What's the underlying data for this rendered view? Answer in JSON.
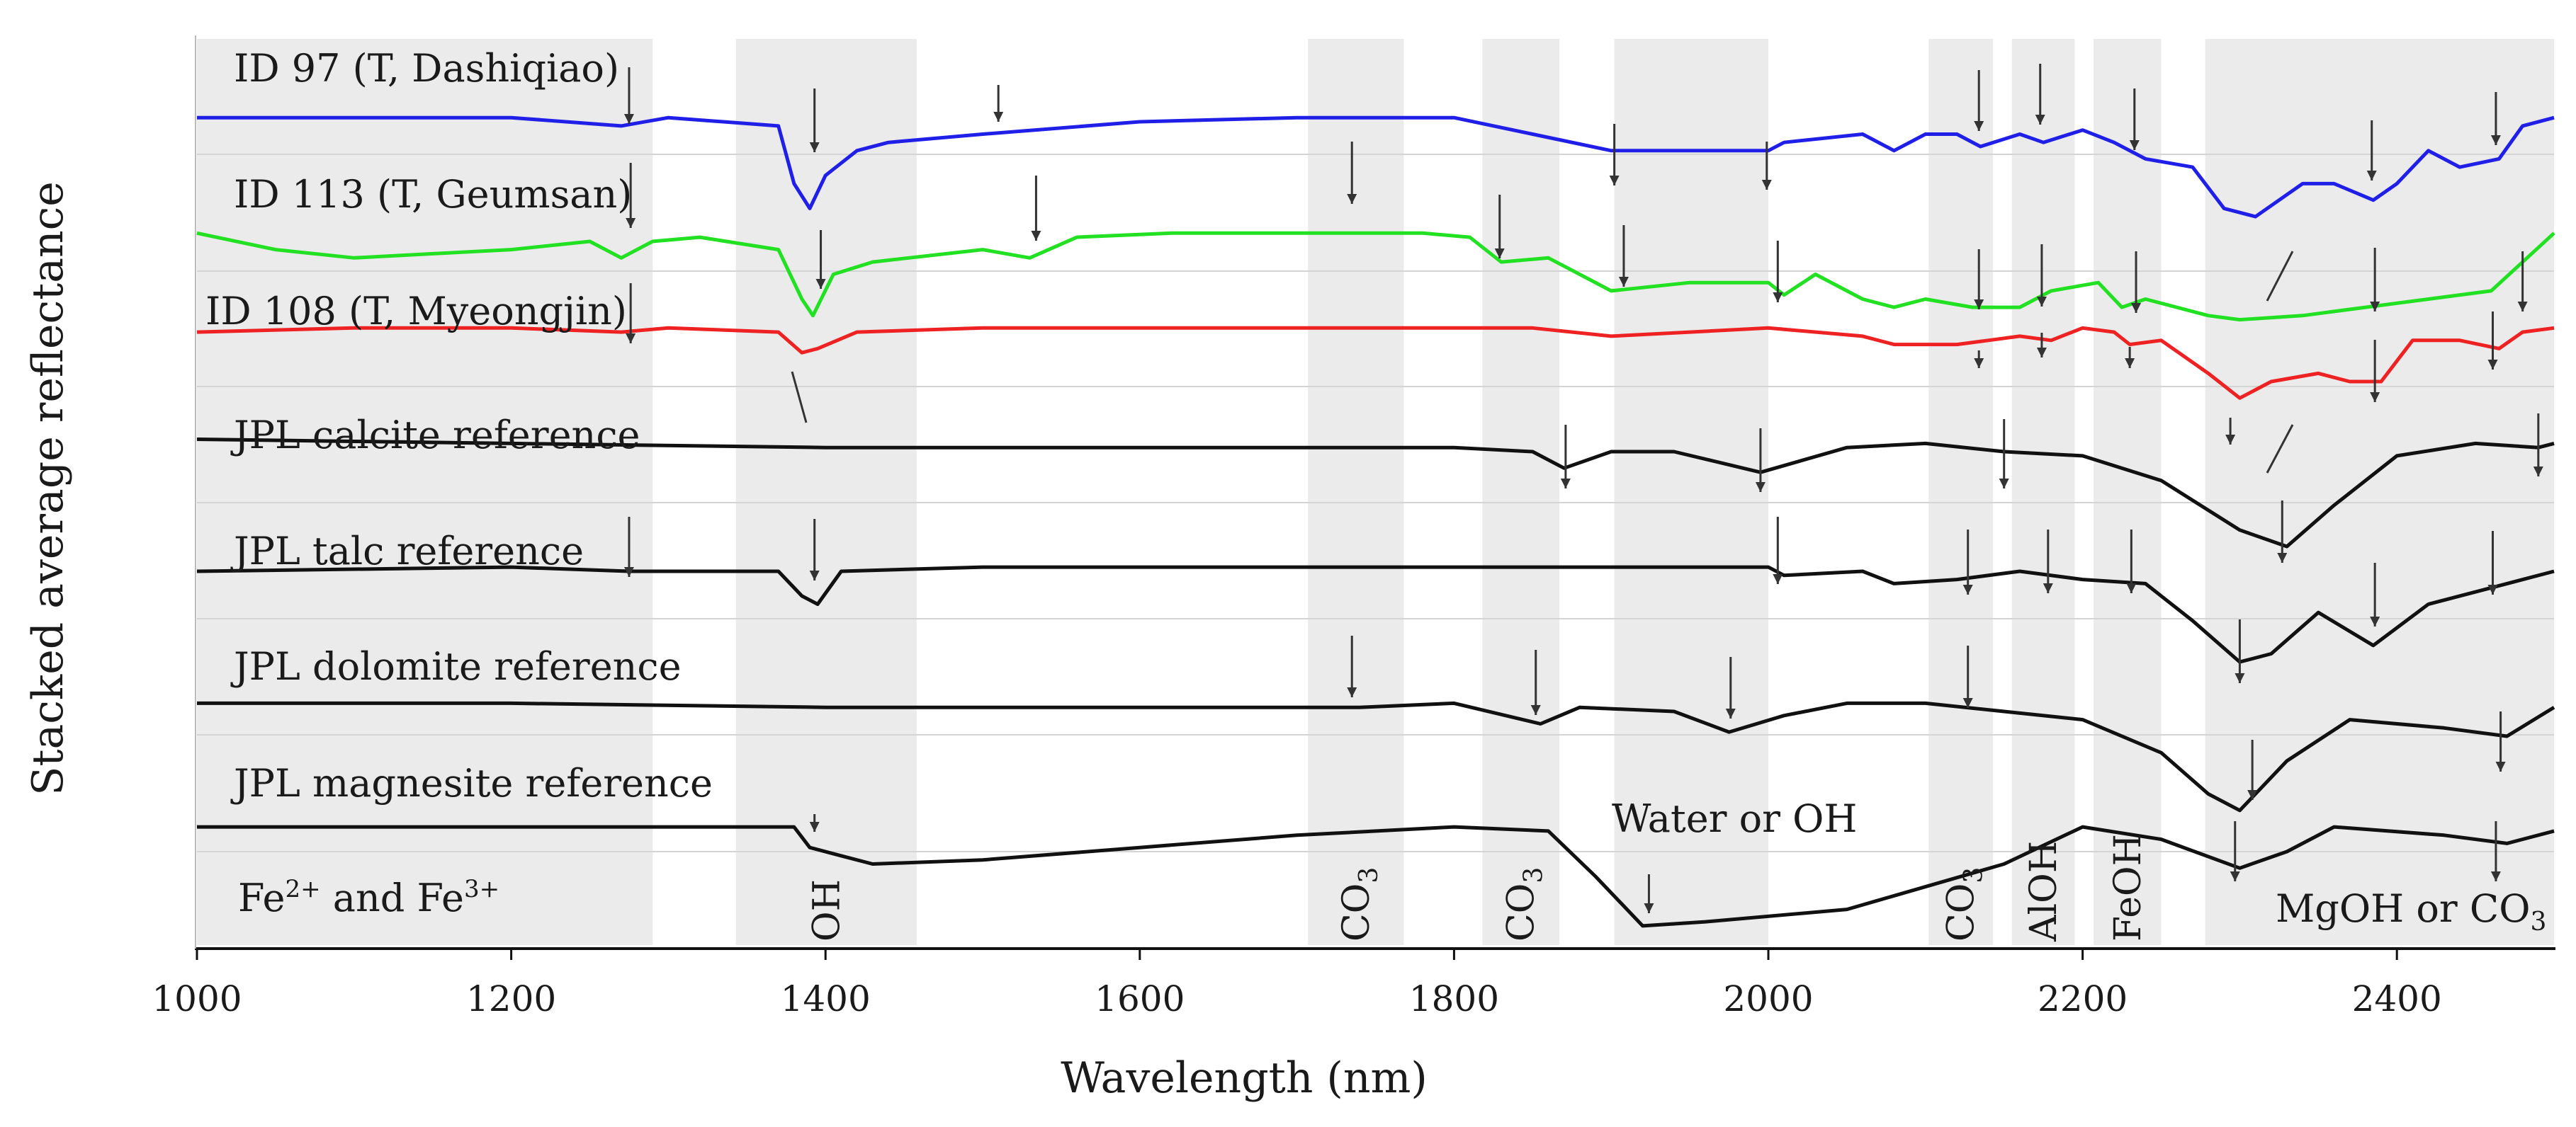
{
  "chart_data": {
    "type": "line",
    "xlabel": "Wavelength (nm)",
    "ylabel": "Stacked average reflectance",
    "xlim": [
      1000,
      2500
    ],
    "xticks": [
      1000,
      1200,
      1400,
      1600,
      1800,
      2000,
      2200,
      2400
    ],
    "grid": "horizontal",
    "series": [
      {
        "name": "ID 97 (T, Dashiqiao)",
        "color": "#1f1fe8",
        "points": [
          [
            1000,
            0.72
          ],
          [
            1100,
            0.72
          ],
          [
            1200,
            0.72
          ],
          [
            1270,
            0.71
          ],
          [
            1300,
            0.72
          ],
          [
            1370,
            0.71
          ],
          [
            1380,
            0.64
          ],
          [
            1390,
            0.61
          ],
          [
            1400,
            0.65
          ],
          [
            1420,
            0.68
          ],
          [
            1440,
            0.69
          ],
          [
            1500,
            0.7
          ],
          [
            1600,
            0.715
          ],
          [
            1700,
            0.72
          ],
          [
            1800,
            0.72
          ],
          [
            1850,
            0.7
          ],
          [
            1900,
            0.68
          ],
          [
            1950,
            0.68
          ],
          [
            2000,
            0.68
          ],
          [
            2010,
            0.69
          ],
          [
            2060,
            0.7
          ],
          [
            2080,
            0.68
          ],
          [
            2100,
            0.7
          ],
          [
            2120,
            0.7
          ],
          [
            2135,
            0.685
          ],
          [
            2160,
            0.7
          ],
          [
            2175,
            0.69
          ],
          [
            2200,
            0.705
          ],
          [
            2220,
            0.69
          ],
          [
            2240,
            0.67
          ],
          [
            2270,
            0.66
          ],
          [
            2290,
            0.61
          ],
          [
            2310,
            0.6
          ],
          [
            2340,
            0.64
          ],
          [
            2360,
            0.64
          ],
          [
            2385,
            0.62
          ],
          [
            2400,
            0.64
          ],
          [
            2420,
            0.68
          ],
          [
            2440,
            0.66
          ],
          [
            2465,
            0.67
          ],
          [
            2480,
            0.71
          ],
          [
            2500,
            0.72
          ]
        ]
      },
      {
        "name": "ID 113 (T, Geumsan)",
        "color": "#22e022",
        "points": [
          [
            1000,
            0.58
          ],
          [
            1050,
            0.56
          ],
          [
            1100,
            0.55
          ],
          [
            1150,
            0.555
          ],
          [
            1200,
            0.56
          ],
          [
            1250,
            0.57
          ],
          [
            1270,
            0.55
          ],
          [
            1290,
            0.57
          ],
          [
            1320,
            0.575
          ],
          [
            1370,
            0.56
          ],
          [
            1385,
            0.5
          ],
          [
            1392,
            0.48
          ],
          [
            1405,
            0.53
          ],
          [
            1430,
            0.545
          ],
          [
            1500,
            0.56
          ],
          [
            1530,
            0.55
          ],
          [
            1560,
            0.575
          ],
          [
            1620,
            0.58
          ],
          [
            1700,
            0.58
          ],
          [
            1780,
            0.58
          ],
          [
            1810,
            0.575
          ],
          [
            1830,
            0.545
          ],
          [
            1860,
            0.55
          ],
          [
            1900,
            0.51
          ],
          [
            1950,
            0.52
          ],
          [
            2000,
            0.52
          ],
          [
            2010,
            0.505
          ],
          [
            2030,
            0.53
          ],
          [
            2060,
            0.5
          ],
          [
            2080,
            0.49
          ],
          [
            2100,
            0.5
          ],
          [
            2130,
            0.49
          ],
          [
            2160,
            0.49
          ],
          [
            2180,
            0.51
          ],
          [
            2210,
            0.52
          ],
          [
            2225,
            0.49
          ],
          [
            2240,
            0.5
          ],
          [
            2280,
            0.48
          ],
          [
            2300,
            0.475
          ],
          [
            2340,
            0.48
          ],
          [
            2380,
            0.49
          ],
          [
            2420,
            0.5
          ],
          [
            2460,
            0.51
          ],
          [
            2500,
            0.58
          ]
        ]
      },
      {
        "name": "ID 108 (T, Myeongjin)",
        "color": "#ee2222",
        "points": [
          [
            1000,
            0.46
          ],
          [
            1100,
            0.465
          ],
          [
            1200,
            0.465
          ],
          [
            1270,
            0.46
          ],
          [
            1300,
            0.465
          ],
          [
            1370,
            0.46
          ],
          [
            1385,
            0.435
          ],
          [
            1395,
            0.44
          ],
          [
            1420,
            0.46
          ],
          [
            1500,
            0.465
          ],
          [
            1600,
            0.465
          ],
          [
            1700,
            0.465
          ],
          [
            1800,
            0.465
          ],
          [
            1850,
            0.465
          ],
          [
            1900,
            0.455
          ],
          [
            2000,
            0.465
          ],
          [
            2060,
            0.455
          ],
          [
            2080,
            0.445
          ],
          [
            2120,
            0.445
          ],
          [
            2140,
            0.45
          ],
          [
            2160,
            0.455
          ],
          [
            2180,
            0.45
          ],
          [
            2200,
            0.465
          ],
          [
            2220,
            0.46
          ],
          [
            2230,
            0.445
          ],
          [
            2250,
            0.45
          ],
          [
            2280,
            0.41
          ],
          [
            2300,
            0.38
          ],
          [
            2320,
            0.4
          ],
          [
            2350,
            0.41
          ],
          [
            2370,
            0.4
          ],
          [
            2390,
            0.4
          ],
          [
            2410,
            0.45
          ],
          [
            2440,
            0.45
          ],
          [
            2465,
            0.44
          ],
          [
            2480,
            0.46
          ],
          [
            2500,
            0.465
          ]
        ]
      },
      {
        "name": "JPL calcite reference",
        "color": "#111111",
        "points": [
          [
            1000,
            0.33
          ],
          [
            1200,
            0.325
          ],
          [
            1400,
            0.32
          ],
          [
            1600,
            0.32
          ],
          [
            1800,
            0.32
          ],
          [
            1850,
            0.315
          ],
          [
            1870,
            0.295
          ],
          [
            1900,
            0.315
          ],
          [
            1940,
            0.315
          ],
          [
            1995,
            0.29
          ],
          [
            2050,
            0.32
          ],
          [
            2100,
            0.325
          ],
          [
            2150,
            0.315
          ],
          [
            2200,
            0.31
          ],
          [
            2250,
            0.28
          ],
          [
            2300,
            0.22
          ],
          [
            2330,
            0.2
          ],
          [
            2360,
            0.25
          ],
          [
            2400,
            0.31
          ],
          [
            2450,
            0.325
          ],
          [
            2490,
            0.32
          ],
          [
            2500,
            0.325
          ]
        ]
      },
      {
        "name": "JPL talc reference",
        "color": "#111111",
        "points": [
          [
            1000,
            0.17
          ],
          [
            1200,
            0.175
          ],
          [
            1275,
            0.17
          ],
          [
            1370,
            0.17
          ],
          [
            1385,
            0.14
          ],
          [
            1395,
            0.13
          ],
          [
            1410,
            0.17
          ],
          [
            1500,
            0.175
          ],
          [
            1700,
            0.175
          ],
          [
            1900,
            0.175
          ],
          [
            2000,
            0.175
          ],
          [
            2010,
            0.165
          ],
          [
            2060,
            0.17
          ],
          [
            2080,
            0.155
          ],
          [
            2120,
            0.16
          ],
          [
            2160,
            0.17
          ],
          [
            2200,
            0.16
          ],
          [
            2240,
            0.155
          ],
          [
            2270,
            0.11
          ],
          [
            2300,
            0.06
          ],
          [
            2320,
            0.07
          ],
          [
            2350,
            0.12
          ],
          [
            2385,
            0.08
          ],
          [
            2420,
            0.13
          ],
          [
            2460,
            0.15
          ],
          [
            2500,
            0.17
          ]
        ]
      },
      {
        "name": "JPL dolomite reference",
        "color": "#111111",
        "points": [
          [
            1000,
            0.01
          ],
          [
            1200,
            0.01
          ],
          [
            1400,
            0.005
          ],
          [
            1600,
            0.005
          ],
          [
            1700,
            0.005
          ],
          [
            1740,
            0.005
          ],
          [
            1800,
            0.01
          ],
          [
            1855,
            -0.015
          ],
          [
            1880,
            0.005
          ],
          [
            1940,
            0.0
          ],
          [
            1975,
            -0.025
          ],
          [
            2010,
            -0.005
          ],
          [
            2050,
            0.01
          ],
          [
            2100,
            0.01
          ],
          [
            2150,
            0.0
          ],
          [
            2200,
            -0.01
          ],
          [
            2250,
            -0.05
          ],
          [
            2280,
            -0.1
          ],
          [
            2300,
            -0.12
          ],
          [
            2330,
            -0.06
          ],
          [
            2370,
            -0.01
          ],
          [
            2430,
            -0.02
          ],
          [
            2470,
            -0.03
          ],
          [
            2500,
            0.005
          ]
        ]
      },
      {
        "name": "JPL magnesite reference",
        "color": "#111111",
        "points": [
          [
            1000,
            -0.14
          ],
          [
            1200,
            -0.14
          ],
          [
            1380,
            -0.14
          ],
          [
            1390,
            -0.165
          ],
          [
            1410,
            -0.175
          ],
          [
            1430,
            -0.185
          ],
          [
            1500,
            -0.18
          ],
          [
            1600,
            -0.165
          ],
          [
            1700,
            -0.15
          ],
          [
            1800,
            -0.14
          ],
          [
            1860,
            -0.145
          ],
          [
            1890,
            -0.2
          ],
          [
            1920,
            -0.26
          ],
          [
            1960,
            -0.255
          ],
          [
            2050,
            -0.24
          ],
          [
            2150,
            -0.185
          ],
          [
            2200,
            -0.14
          ],
          [
            2250,
            -0.155
          ],
          [
            2300,
            -0.19
          ],
          [
            2330,
            -0.17
          ],
          [
            2360,
            -0.14
          ],
          [
            2430,
            -0.15
          ],
          [
            2470,
            -0.16
          ],
          [
            2500,
            -0.145
          ]
        ]
      }
    ],
    "regions": [
      {
        "label": "",
        "from": 1000,
        "to": 1290
      },
      {
        "label": "OH",
        "from": 1343,
        "to": 1458
      },
      {
        "label": "CO3",
        "from": 1707,
        "to": 1768
      },
      {
        "label": "CO3",
        "from": 1818,
        "to": 1867
      },
      {
        "label": "",
        "from": 1902,
        "to": 2000
      },
      {
        "label": "CO3",
        "from": 2102,
        "to": 2143
      },
      {
        "label": "AlOH",
        "from": 2155,
        "to": 2195
      },
      {
        "label": "FeOH",
        "from": 2207,
        "to": 2250
      },
      {
        "label": "",
        "from": 2278,
        "to": 2500
      }
    ],
    "annotations": [
      {
        "text": "Fe",
        "sup1": "2+",
        "mid": " and Fe",
        "sup2": "3+"
      },
      {
        "text": "Water or OH"
      },
      {
        "text": "MgOH or CO",
        "sub": "3"
      }
    ]
  }
}
